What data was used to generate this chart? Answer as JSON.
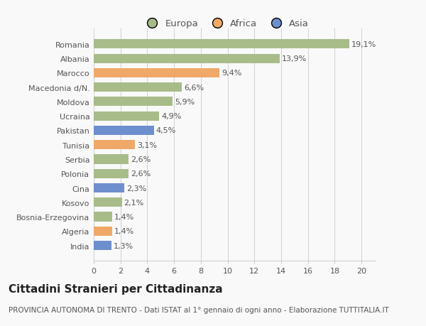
{
  "categories": [
    "India",
    "Algeria",
    "Bosnia-Erzegovina",
    "Kosovo",
    "Cina",
    "Polonia",
    "Serbia",
    "Tunisia",
    "Pakistan",
    "Ucraina",
    "Moldova",
    "Macedonia d/N.",
    "Marocco",
    "Albania",
    "Romania"
  ],
  "values": [
    1.3,
    1.4,
    1.4,
    2.1,
    2.3,
    2.6,
    2.6,
    3.1,
    4.5,
    4.9,
    5.9,
    6.6,
    9.4,
    13.9,
    19.1
  ],
  "labels": [
    "1,3%",
    "1,4%",
    "1,4%",
    "2,1%",
    "2,3%",
    "2,6%",
    "2,6%",
    "3,1%",
    "4,5%",
    "4,9%",
    "5,9%",
    "6,6%",
    "9,4%",
    "13,9%",
    "19,1%"
  ],
  "colors": [
    "#6e8fcd",
    "#f0a868",
    "#a8bc8a",
    "#a8bc8a",
    "#6e8fcd",
    "#a8bc8a",
    "#a8bc8a",
    "#f0a868",
    "#6e8fcd",
    "#a8bc8a",
    "#a8bc8a",
    "#a8bc8a",
    "#f0a868",
    "#a8bc8a",
    "#a8bc8a"
  ],
  "legend_labels": [
    "Europa",
    "Africa",
    "Asia"
  ],
  "legend_colors": [
    "#a8bc8a",
    "#f0a868",
    "#6e8fcd"
  ],
  "title": "Cittadini Stranieri per Cittadinanza",
  "subtitle": "PROVINCIA AUTONOMA DI TRENTO - Dati ISTAT al 1° gennaio di ogni anno - Elaborazione TUTTITALIA.IT",
  "xlim": [
    0,
    21
  ],
  "xticks": [
    0,
    2,
    4,
    6,
    8,
    10,
    12,
    14,
    16,
    18,
    20
  ],
  "background_color": "#f9f9f9",
  "bar_height": 0.65,
  "grid_color": "#d0d0d0",
  "title_fontsize": 11,
  "subtitle_fontsize": 7.5,
  "label_fontsize": 8,
  "tick_fontsize": 8,
  "legend_fontsize": 9.5
}
